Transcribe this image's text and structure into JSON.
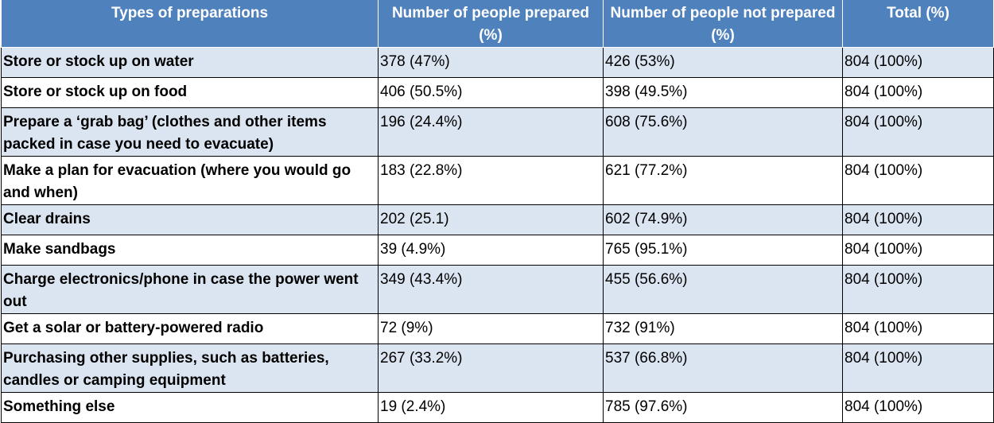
{
  "headers": [
    "Types of preparations",
    "Number of people prepared (%)",
    "Number of people not prepared (%)",
    "Total (%)"
  ],
  "rows": [
    {
      "label": "Store or stock up on water",
      "prepared": "378 (47%)",
      "not_prepared": "426 (53%)",
      "total": "804 (100%)"
    },
    {
      "label": "Store or stock up on food",
      "prepared": "406 (50.5%)",
      "not_prepared": "398 (49.5%)",
      "total": "804 (100%)"
    },
    {
      "label": "Prepare a ‘grab bag’ (clothes and other items packed in case you need to evacuate)",
      "prepared": "196 (24.4%)",
      "not_prepared": "608 (75.6%)",
      "total": "804 (100%)"
    },
    {
      "label": "Make a plan for evacuation (where you would go and when)",
      "prepared": "183 (22.8%)",
      "not_prepared": "621 (77.2%)",
      "total": "804 (100%)"
    },
    {
      "label": "Clear drains",
      "prepared": "202 (25.1)",
      "not_prepared": "602 (74.9%)",
      "total": "804 (100%)"
    },
    {
      "label": "Make sandbags",
      "prepared": "39 (4.9%)",
      "not_prepared": "765 (95.1%)",
      "total": "804 (100%)"
    },
    {
      "label": "Charge electronics/phone in case the power went out",
      "prepared": "349 (43.4%)",
      "not_prepared": "455 (56.6%)",
      "total": "804 (100%)"
    },
    {
      "label": "Get a solar or battery-powered radio",
      "prepared": "72 (9%)",
      "not_prepared": "732 (91%)",
      "total": "804 (100%)"
    },
    {
      "label": "Purchasing other supplies, such as batteries, candles or camping equipment",
      "prepared": "267 (33.2%)",
      "not_prepared": "537 (66.8%)",
      "total": "804 (100%)"
    },
    {
      "label": "Something else",
      "prepared": "19 (2.4%)",
      "not_prepared": "785 (97.6%)",
      "total": "804 (100%)"
    }
  ]
}
